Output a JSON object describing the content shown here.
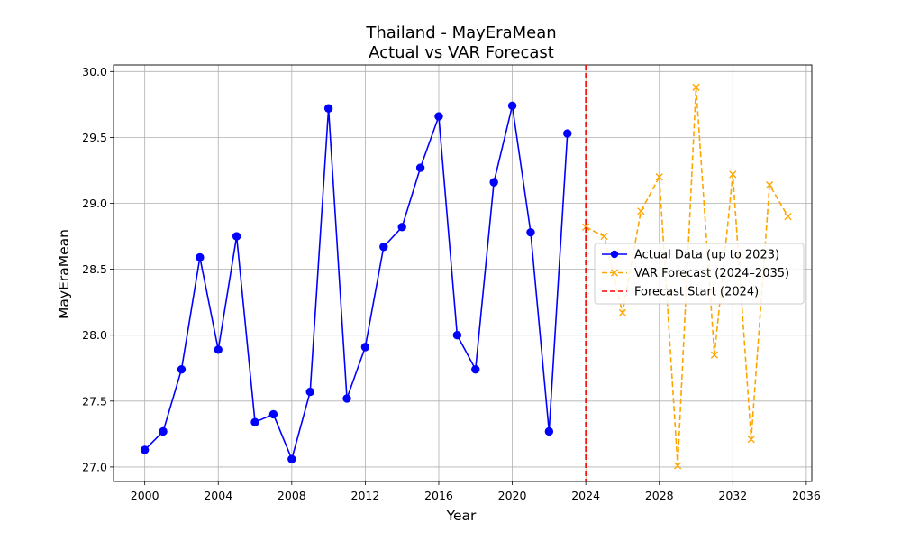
{
  "chart_data": {
    "type": "line",
    "title_line1": "Thailand - MayEraMean",
    "title_line2": "Actual vs VAR Forecast",
    "xlabel": "Year",
    "ylabel": "MayEraMean",
    "xlim": [
      1998.3,
      2036.3
    ],
    "ylim": [
      26.89,
      30.05
    ],
    "x_ticks": [
      2000,
      2004,
      2008,
      2012,
      2016,
      2020,
      2024,
      2028,
      2032,
      2036
    ],
    "x_tick_labels": [
      "2000",
      "2004",
      "2008",
      "2012",
      "2016",
      "2020",
      "2024",
      "2028",
      "2032",
      "2036"
    ],
    "y_ticks": [
      27.0,
      27.5,
      28.0,
      28.5,
      29.0,
      29.5,
      30.0
    ],
    "y_tick_labels": [
      "27.0",
      "27.5",
      "28.0",
      "28.5",
      "29.0",
      "29.5",
      "30.0"
    ],
    "grid": true,
    "legend_position": "center-right",
    "series": [
      {
        "name": "Actual Data (up to 2023)",
        "color": "#0000ff",
        "style": "solid",
        "marker": "circle",
        "x": [
          2000,
          2001,
          2002,
          2003,
          2004,
          2005,
          2006,
          2007,
          2008,
          2009,
          2010,
          2011,
          2012,
          2013,
          2014,
          2015,
          2016,
          2017,
          2018,
          2019,
          2020,
          2021,
          2022,
          2023
        ],
        "values": [
          27.13,
          27.27,
          27.74,
          28.59,
          27.89,
          28.75,
          27.34,
          27.4,
          27.06,
          27.57,
          29.72,
          27.52,
          27.91,
          28.67,
          28.82,
          29.27,
          29.66,
          28.0,
          27.74,
          29.16,
          29.74,
          28.78,
          27.27,
          29.53
        ]
      },
      {
        "name": "VAR Forecast (2024–2035)",
        "color": "#ffa500",
        "style": "dashed",
        "marker": "x",
        "x": [
          2024,
          2025,
          2026,
          2027,
          2028,
          2029,
          2030,
          2031,
          2032,
          2033,
          2034,
          2035
        ],
        "values": [
          28.82,
          28.75,
          28.17,
          28.94,
          29.2,
          27.01,
          29.88,
          27.85,
          29.22,
          27.21,
          29.14,
          28.9
        ]
      }
    ],
    "annotations": [
      {
        "name": "Forecast Start (2024)",
        "type": "vline",
        "x": 2024,
        "color": "#ff0000",
        "style": "dashed"
      }
    ]
  }
}
